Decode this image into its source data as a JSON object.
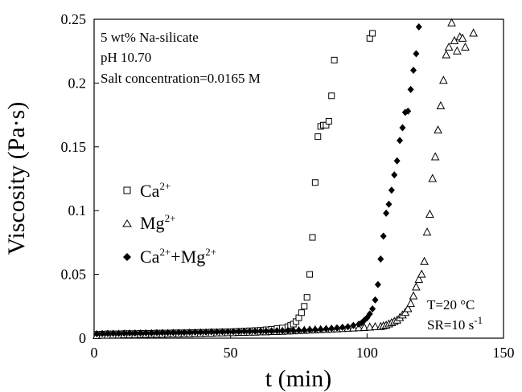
{
  "chart_data": {
    "type": "scatter",
    "xlabel": "t (min)",
    "ylabel": "Viscosity (Pa·s)",
    "xlim": [
      0,
      150
    ],
    "ylim": [
      0,
      0.25
    ],
    "xticks": [
      "0",
      "50",
      "100",
      "150"
    ],
    "yticks": [
      "0",
      "0.05",
      "0.1",
      "0.15",
      "0.2",
      "0.25"
    ],
    "grid": false,
    "legend_position": "middle-left",
    "annotations": {
      "top_left": [
        "5 wt% Na-silicate",
        "pH 10.70",
        "Salt concentration=0.0165 M"
      ],
      "bottom_right": [
        "T=20 °C",
        "SR=10 s",
        "-1"
      ]
    },
    "series": [
      {
        "name": "Ca",
        "name_sup": "2+",
        "marker": "open-square",
        "points": [
          [
            1,
            0.003
          ],
          [
            3,
            0.0032
          ],
          [
            5,
            0.0034
          ],
          [
            7,
            0.0034
          ],
          [
            9,
            0.0034
          ],
          [
            11,
            0.0036
          ],
          [
            13,
            0.0036
          ],
          [
            15,
            0.0036
          ],
          [
            17,
            0.0038
          ],
          [
            19,
            0.0038
          ],
          [
            21,
            0.0038
          ],
          [
            23,
            0.004
          ],
          [
            25,
            0.004
          ],
          [
            27,
            0.004
          ],
          [
            29,
            0.0042
          ],
          [
            31,
            0.0042
          ],
          [
            33,
            0.0042
          ],
          [
            35,
            0.0044
          ],
          [
            37,
            0.0044
          ],
          [
            39,
            0.0046
          ],
          [
            41,
            0.0046
          ],
          [
            43,
            0.0048
          ],
          [
            45,
            0.0048
          ],
          [
            47,
            0.005
          ],
          [
            49,
            0.005
          ],
          [
            51,
            0.0052
          ],
          [
            53,
            0.0054
          ],
          [
            55,
            0.0056
          ],
          [
            57,
            0.0058
          ],
          [
            59,
            0.006
          ],
          [
            61,
            0.0062
          ],
          [
            63,
            0.0066
          ],
          [
            65,
            0.007
          ],
          [
            67,
            0.0075
          ],
          [
            69,
            0.008
          ],
          [
            71,
            0.009
          ],
          [
            72,
            0.01
          ],
          [
            73,
            0.011
          ],
          [
            74,
            0.013
          ],
          [
            75,
            0.016
          ],
          [
            76,
            0.02
          ],
          [
            77,
            0.025
          ],
          [
            78,
            0.032
          ],
          [
            79,
            0.05
          ],
          [
            80,
            0.079
          ],
          [
            81,
            0.122
          ],
          [
            82,
            0.158
          ],
          [
            83,
            0.166
          ],
          [
            84,
            0.167
          ],
          [
            85,
            0.167
          ],
          [
            86,
            0.17
          ],
          [
            87,
            0.19
          ],
          [
            88,
            0.218
          ],
          [
            101,
            0.235
          ],
          [
            102,
            0.239
          ]
        ]
      },
      {
        "name": "Mg",
        "name_sup": "2+",
        "marker": "open-triangle",
        "points": [
          [
            1,
            0.002
          ],
          [
            3,
            0.0022
          ],
          [
            5,
            0.0022
          ],
          [
            7,
            0.0024
          ],
          [
            9,
            0.0024
          ],
          [
            11,
            0.0026
          ],
          [
            13,
            0.0026
          ],
          [
            15,
            0.0026
          ],
          [
            17,
            0.0028
          ],
          [
            19,
            0.0028
          ],
          [
            21,
            0.003
          ],
          [
            23,
            0.003
          ],
          [
            25,
            0.003
          ],
          [
            27,
            0.0032
          ],
          [
            29,
            0.0032
          ],
          [
            31,
            0.0032
          ],
          [
            33,
            0.0034
          ],
          [
            35,
            0.0034
          ],
          [
            37,
            0.0036
          ],
          [
            39,
            0.0036
          ],
          [
            41,
            0.0038
          ],
          [
            43,
            0.0038
          ],
          [
            45,
            0.004
          ],
          [
            47,
            0.004
          ],
          [
            49,
            0.0042
          ],
          [
            51,
            0.0042
          ],
          [
            53,
            0.0044
          ],
          [
            55,
            0.0044
          ],
          [
            57,
            0.0046
          ],
          [
            59,
            0.0046
          ],
          [
            61,
            0.0048
          ],
          [
            63,
            0.0048
          ],
          [
            65,
            0.005
          ],
          [
            67,
            0.005
          ],
          [
            69,
            0.0052
          ],
          [
            71,
            0.0054
          ],
          [
            73,
            0.0056
          ],
          [
            75,
            0.0058
          ],
          [
            77,
            0.006
          ],
          [
            79,
            0.0062
          ],
          [
            81,
            0.0064
          ],
          [
            83,
            0.0066
          ],
          [
            85,
            0.0068
          ],
          [
            87,
            0.007
          ],
          [
            89,
            0.0072
          ],
          [
            91,
            0.0074
          ],
          [
            93,
            0.0076
          ],
          [
            95,
            0.0078
          ],
          [
            97,
            0.008
          ],
          [
            99,
            0.0082
          ],
          [
            101,
            0.0085
          ],
          [
            103,
            0.0088
          ],
          [
            105,
            0.009
          ],
          [
            106,
            0.0095
          ],
          [
            107,
            0.01
          ],
          [
            108,
            0.011
          ],
          [
            109,
            0.012
          ],
          [
            110,
            0.013
          ],
          [
            111,
            0.014
          ],
          [
            112,
            0.016
          ],
          [
            113,
            0.018
          ],
          [
            114,
            0.02
          ],
          [
            115,
            0.023
          ],
          [
            116,
            0.027
          ],
          [
            117,
            0.033
          ],
          [
            118,
            0.04
          ],
          [
            119,
            0.046
          ],
          [
            120,
            0.05
          ],
          [
            121,
            0.06
          ],
          [
            122,
            0.083
          ],
          [
            123,
            0.097
          ],
          [
            124,
            0.125
          ],
          [
            125,
            0.142
          ],
          [
            126,
            0.163
          ],
          [
            127,
            0.182
          ],
          [
            128,
            0.202
          ],
          [
            129,
            0.222
          ],
          [
            130,
            0.228
          ],
          [
            131,
            0.247
          ],
          [
            132,
            0.233
          ],
          [
            133,
            0.225
          ],
          [
            134,
            0.236
          ],
          [
            135,
            0.235
          ],
          [
            136,
            0.228
          ],
          [
            139,
            0.239
          ]
        ]
      },
      {
        "name": "Ca",
        "name_sup": "2+",
        "name_mid": "+Mg",
        "name_sup2": "2+",
        "marker": "filled-diamond",
        "points": [
          [
            1,
            0.0035
          ],
          [
            3,
            0.0036
          ],
          [
            5,
            0.0037
          ],
          [
            7,
            0.0038
          ],
          [
            9,
            0.0038
          ],
          [
            11,
            0.0039
          ],
          [
            13,
            0.004
          ],
          [
            15,
            0.004
          ],
          [
            17,
            0.0041
          ],
          [
            19,
            0.0042
          ],
          [
            21,
            0.0042
          ],
          [
            23,
            0.0043
          ],
          [
            25,
            0.0044
          ],
          [
            27,
            0.0044
          ],
          [
            29,
            0.0045
          ],
          [
            31,
            0.0046
          ],
          [
            33,
            0.0046
          ],
          [
            35,
            0.0047
          ],
          [
            37,
            0.0048
          ],
          [
            39,
            0.0048
          ],
          [
            41,
            0.0049
          ],
          [
            43,
            0.005
          ],
          [
            45,
            0.005
          ],
          [
            47,
            0.0051
          ],
          [
            49,
            0.0052
          ],
          [
            51,
            0.0052
          ],
          [
            53,
            0.0053
          ],
          [
            55,
            0.0054
          ],
          [
            57,
            0.0054
          ],
          [
            59,
            0.0055
          ],
          [
            61,
            0.0056
          ],
          [
            63,
            0.0056
          ],
          [
            65,
            0.0057
          ],
          [
            67,
            0.0058
          ],
          [
            69,
            0.0058
          ],
          [
            71,
            0.0059
          ],
          [
            73,
            0.006
          ],
          [
            75,
            0.0062
          ],
          [
            77,
            0.0064
          ],
          [
            79,
            0.0066
          ],
          [
            81,
            0.0068
          ],
          [
            83,
            0.007
          ],
          [
            85,
            0.0073
          ],
          [
            87,
            0.0076
          ],
          [
            89,
            0.008
          ],
          [
            91,
            0.0085
          ],
          [
            93,
            0.009
          ],
          [
            95,
            0.01
          ],
          [
            97,
            0.011
          ],
          [
            98,
            0.012
          ],
          [
            99,
            0.014
          ],
          [
            100,
            0.016
          ],
          [
            101,
            0.019
          ],
          [
            102,
            0.023
          ],
          [
            103,
            0.03
          ],
          [
            104,
            0.042
          ],
          [
            105,
            0.062
          ],
          [
            106,
            0.08
          ],
          [
            107,
            0.098
          ],
          [
            108,
            0.105
          ],
          [
            109,
            0.116
          ],
          [
            110,
            0.128
          ],
          [
            111,
            0.139
          ],
          [
            112,
            0.155
          ],
          [
            113,
            0.165
          ],
          [
            114,
            0.177
          ],
          [
            115,
            0.178
          ],
          [
            116,
            0.195
          ],
          [
            117,
            0.21
          ],
          [
            118,
            0.223
          ],
          [
            119,
            0.244
          ]
        ]
      }
    ]
  }
}
